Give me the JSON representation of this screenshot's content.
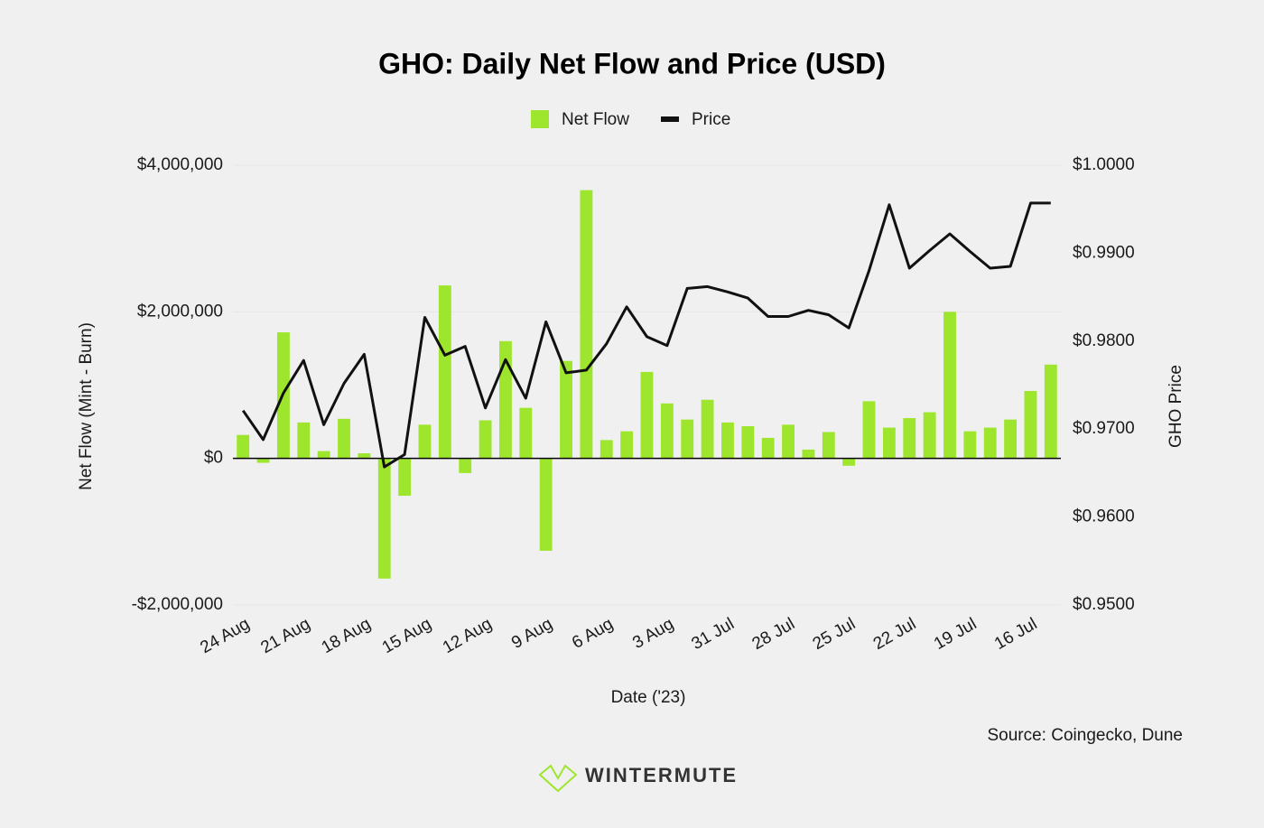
{
  "chart_data": {
    "type": "bar-line",
    "title": "GHO: Daily Net Flow and Price (USD)",
    "x_label": "Date ('23)",
    "y_label": "Net Flow (Mint - Burn)",
    "y2_label": "GHO Price",
    "source": "Source: Coingecko, Dune",
    "brand": "WINTERMUTE",
    "grid": true,
    "categories": [
      "24 Aug",
      null,
      null,
      "21 Aug",
      null,
      null,
      "18 Aug",
      null,
      null,
      "15 Aug",
      null,
      null,
      "12 Aug",
      null,
      null,
      "9 Aug",
      null,
      null,
      "6 Aug",
      null,
      null,
      "3 Aug",
      null,
      null,
      "31 Jul",
      null,
      null,
      "28 Jul",
      null,
      null,
      "25 Jul",
      null,
      null,
      "22 Jul",
      null,
      null,
      "19 Jul",
      null,
      null,
      "16 Jul",
      null
    ],
    "ylim": [
      -2000000,
      4000000
    ],
    "yticks": [
      {
        "value": -2000000,
        "label": "-$2,000,000"
      },
      {
        "value": 0,
        "label": "$0"
      },
      {
        "value": 2000000,
        "label": "$2,000,000"
      },
      {
        "value": 4000000,
        "label": "$4,000,000"
      }
    ],
    "y2lim": [
      0.95,
      1.0
    ],
    "y2ticks": [
      {
        "value": 0.95,
        "label": "$0.9500"
      },
      {
        "value": 0.96,
        "label": "$0.9600"
      },
      {
        "value": 0.97,
        "label": "$0.9700"
      },
      {
        "value": 0.98,
        "label": "$0.9800"
      },
      {
        "value": 0.99,
        "label": "$0.9900"
      },
      {
        "value": 1.0,
        "label": "$1.0000"
      }
    ],
    "series": [
      {
        "name": "Net Flow",
        "type": "bar",
        "color": "#9ee62d",
        "values": [
          320000,
          -60000,
          1720000,
          490000,
          100000,
          540000,
          70000,
          -1640000,
          -510000,
          460000,
          2360000,
          -200000,
          520000,
          1600000,
          690000,
          -1260000,
          1330000,
          3660000,
          250000,
          370000,
          1180000,
          750000,
          530000,
          800000,
          490000,
          440000,
          280000,
          460000,
          120000,
          360000,
          -100000,
          780000,
          420000,
          550000,
          630000,
          2000000,
          370000,
          420000,
          530000,
          920000,
          1280000
        ]
      },
      {
        "name": "Price",
        "type": "line",
        "axis": "y2",
        "color": "#111111",
        "values": [
          0.9721,
          0.9688,
          0.9741,
          0.9778,
          0.9705,
          0.9752,
          0.9785,
          0.9657,
          0.9671,
          0.9827,
          0.9784,
          0.9794,
          0.9724,
          0.9779,
          0.9735,
          0.9822,
          0.9764,
          0.9767,
          0.9797,
          0.9839,
          0.9805,
          0.9795,
          0.986,
          0.9862,
          0.9856,
          0.9849,
          0.9828,
          0.9828,
          0.9835,
          0.983,
          0.9815,
          0.988,
          0.9955,
          0.9883,
          0.9903,
          0.9922,
          0.9902,
          0.9883,
          0.9885,
          0.9957,
          0.9957
        ]
      }
    ]
  }
}
